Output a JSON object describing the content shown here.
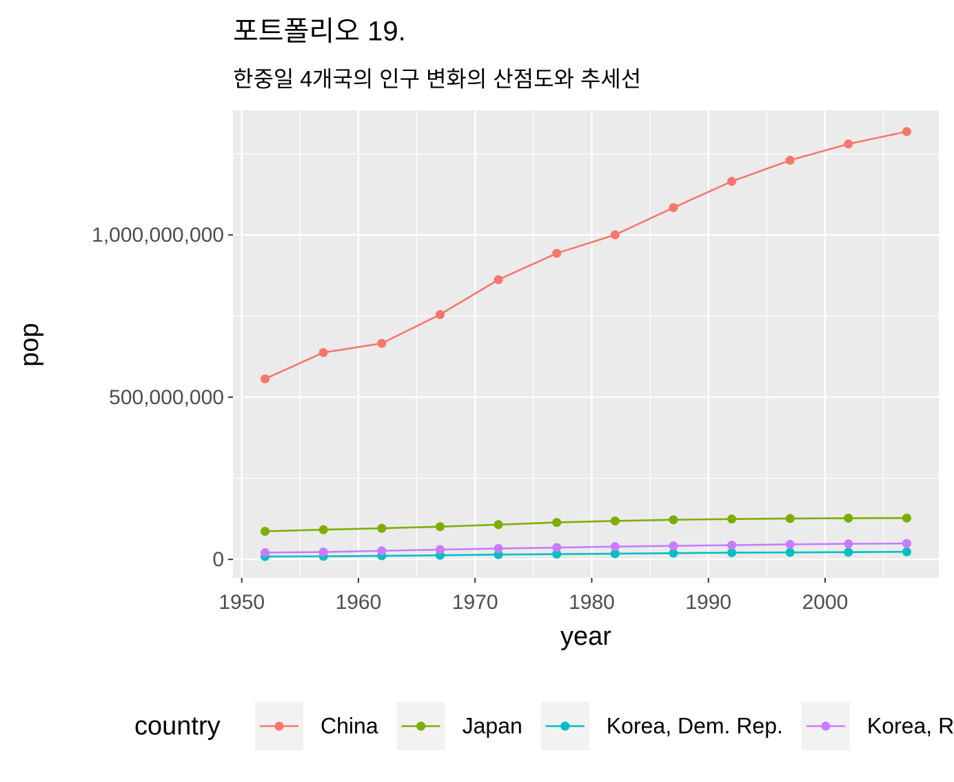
{
  "chart_data": {
    "type": "line",
    "title": "포트폴리오 19.",
    "subtitle": "한중일 4개국의 인구 변화의 산점도와 추세선",
    "x_label": "year",
    "y_label": "pop",
    "legend_title": "country",
    "legend_position": "bottom",
    "grid": true,
    "x": [
      1952,
      1957,
      1962,
      1967,
      1972,
      1977,
      1982,
      1987,
      1992,
      1997,
      2002,
      2007
    ],
    "series": [
      {
        "name": "China",
        "color": "#F8766D",
        "values": [
          556263527,
          637408000,
          665770000,
          754550000,
          862030000,
          943455000,
          1000281000,
          1084035000,
          1164970000,
          1230075000,
          1280400000,
          1318683096
        ]
      },
      {
        "name": "Japan",
        "color": "#7CAE00",
        "values": [
          86459025,
          91563009,
          95831757,
          100825279,
          107188273,
          113872473,
          118454974,
          122091325,
          124329269,
          125956499,
          127065841,
          127467972
        ]
      },
      {
        "name": "Korea, Dem. Rep.",
        "color": "#00BFC4",
        "values": [
          8865488,
          9411381,
          10917494,
          12617009,
          14781241,
          16325320,
          17647518,
          19067554,
          20711375,
          21585105,
          22215365,
          23301725
        ]
      },
      {
        "name": "Korea, Rep.",
        "color": "#C77CFF",
        "values": [
          20947571,
          22611552,
          26420307,
          30131000,
          33505000,
          36436000,
          39326000,
          41622000,
          43805450,
          46173816,
          47969150,
          49044790
        ]
      }
    ],
    "xlim": [
      1949.25,
      2009.75
    ],
    "xticks": [
      1950,
      1960,
      1970,
      1980,
      1990,
      2000
    ],
    "ylim": [
      -57000000,
      1384000000
    ],
    "yticks": [
      0,
      {
        "value": 500000000,
        "label": "500,000,000"
      },
      {
        "value": 1000000000,
        "label": "1,000,000,000"
      }
    ]
  }
}
